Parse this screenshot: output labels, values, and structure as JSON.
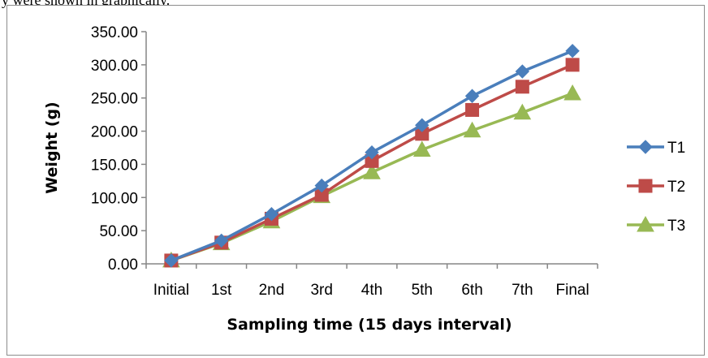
{
  "caption_fragment": "y were shown in graphically.",
  "chart_data": {
    "type": "line",
    "title": "",
    "xlabel": "Sampling time (15 days interval)",
    "ylabel": "Weight (g)",
    "categories": [
      "Initial",
      "1st",
      "2nd",
      "3rd",
      "4th",
      "5th",
      "6th",
      "7th",
      "Final"
    ],
    "ylim": [
      0,
      350
    ],
    "yticks": [
      "0.00",
      "50.00",
      "100.00",
      "150.00",
      "200.00",
      "250.00",
      "300.00",
      "350.00"
    ],
    "grid": false,
    "legend_position": "right",
    "series": [
      {
        "name": "T1",
        "marker": "diamond",
        "color": "#4a7ebb",
        "values": [
          5,
          35,
          75,
          118,
          168,
          209,
          253,
          290,
          321
        ]
      },
      {
        "name": "T2",
        "marker": "square",
        "color": "#be4b48",
        "values": [
          5,
          32,
          68,
          104,
          155,
          196,
          232,
          267,
          300
        ]
      },
      {
        "name": "T3",
        "marker": "triangle",
        "color": "#98b954",
        "values": [
          5,
          31,
          64,
          102,
          138,
          172,
          201,
          228,
          257
        ]
      }
    ]
  }
}
